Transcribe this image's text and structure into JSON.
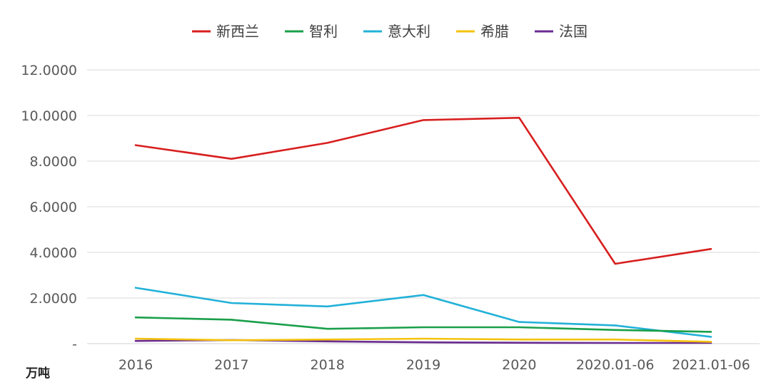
{
  "chart_data": {
    "type": "line",
    "title": "",
    "xlabel": "",
    "ylabel": "",
    "unit_label": "万吨",
    "categories": [
      "2016",
      "2017",
      "2018",
      "2019",
      "2020",
      "2020.01-06",
      "2021.01-06"
    ],
    "ylim": [
      0,
      12
    ],
    "yticks": [
      {
        "value": 0,
        "label": "-"
      },
      {
        "value": 2,
        "label": "2.0000"
      },
      {
        "value": 4,
        "label": "4.0000"
      },
      {
        "value": 6,
        "label": "6.0000"
      },
      {
        "value": 8,
        "label": "8.0000"
      },
      {
        "value": 10,
        "label": "10.0000"
      },
      {
        "value": 12,
        "label": "12.0000"
      }
    ],
    "grid": true,
    "legend_position": "top-center",
    "series": [
      {
        "name": "新西兰",
        "color": "#d81e1e",
        "values": [
          8.7,
          8.1,
          8.8,
          9.8,
          9.9,
          3.5,
          4.15
        ]
      },
      {
        "name": "智利",
        "color": "#1a9f4a",
        "values": [
          1.15,
          1.05,
          0.65,
          0.72,
          0.72,
          0.6,
          0.52
        ]
      },
      {
        "name": "意大利",
        "color": "#22b1d8",
        "values": [
          2.45,
          1.78,
          1.63,
          2.13,
          0.95,
          0.8,
          0.3
        ]
      },
      {
        "name": "希腊",
        "color": "#f4c20d",
        "values": [
          0.22,
          0.15,
          0.18,
          0.22,
          0.18,
          0.18,
          0.08
        ]
      },
      {
        "name": "法国",
        "color": "#6a2c91",
        "values": [
          0.12,
          0.16,
          0.1,
          0.06,
          0.04,
          0.03,
          0.03
        ]
      }
    ]
  }
}
